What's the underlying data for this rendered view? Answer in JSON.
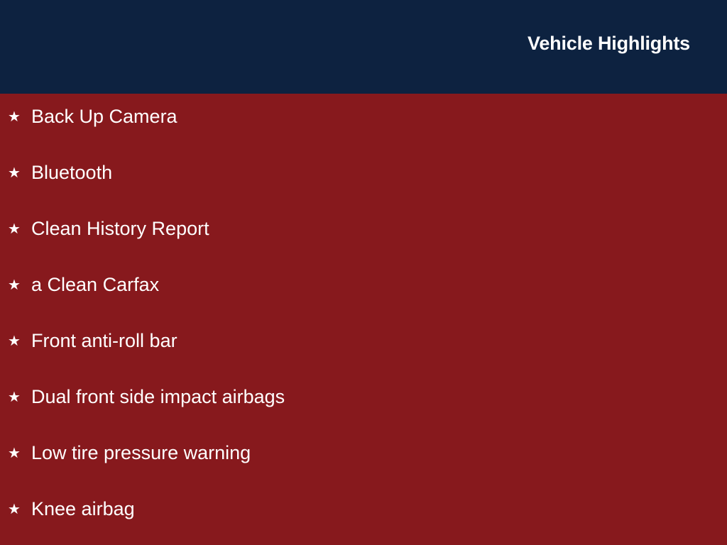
{
  "header": {
    "title": "Vehicle Highlights"
  },
  "highlights": {
    "icon": "star-icon",
    "items": [
      "Back Up Camera",
      "Bluetooth",
      "Clean History Report",
      "a Clean Carfax",
      "Front anti-roll bar",
      "Dual front side impact airbags",
      "Low tire pressure warning",
      "Knee airbag"
    ]
  },
  "colors": {
    "header_bg": "#0d2240",
    "body_bg": "#87191d",
    "text": "#ffffff"
  }
}
